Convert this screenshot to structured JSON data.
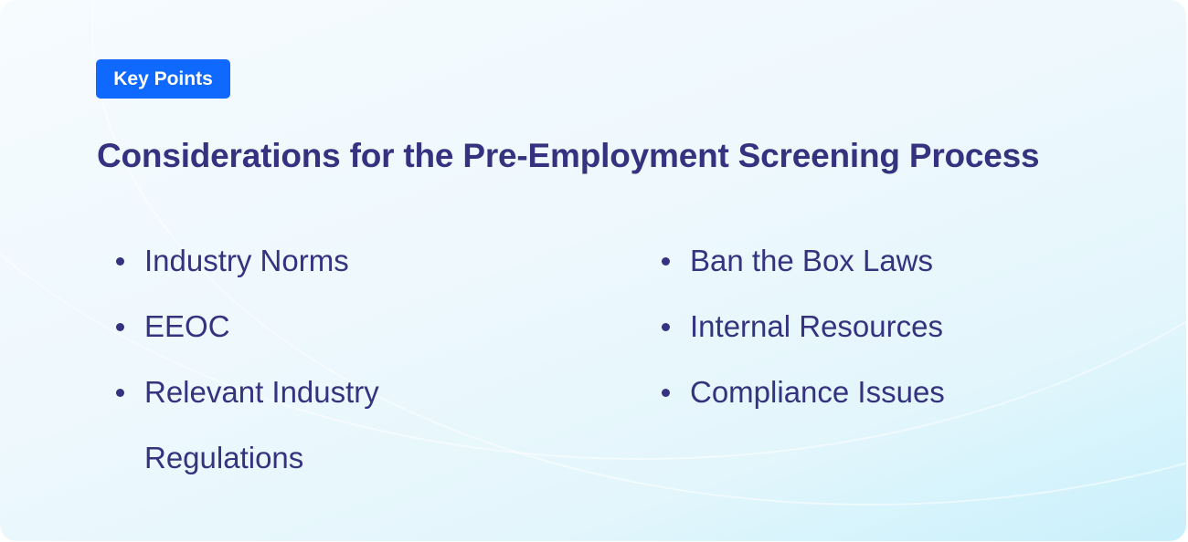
{
  "badge": {
    "label": "Key Points",
    "color": "#0f69ff"
  },
  "title": "Considerations for the Pre-Employment Screening Process",
  "columns": [
    {
      "items": [
        "Industry Norms",
        "EEOC",
        "Relevant Industry Regulations"
      ]
    },
    {
      "items": [
        "Ban the Box Laws",
        "Internal Resources",
        "Compliance Issues"
      ]
    }
  ],
  "colors": {
    "text": "#35327f"
  }
}
